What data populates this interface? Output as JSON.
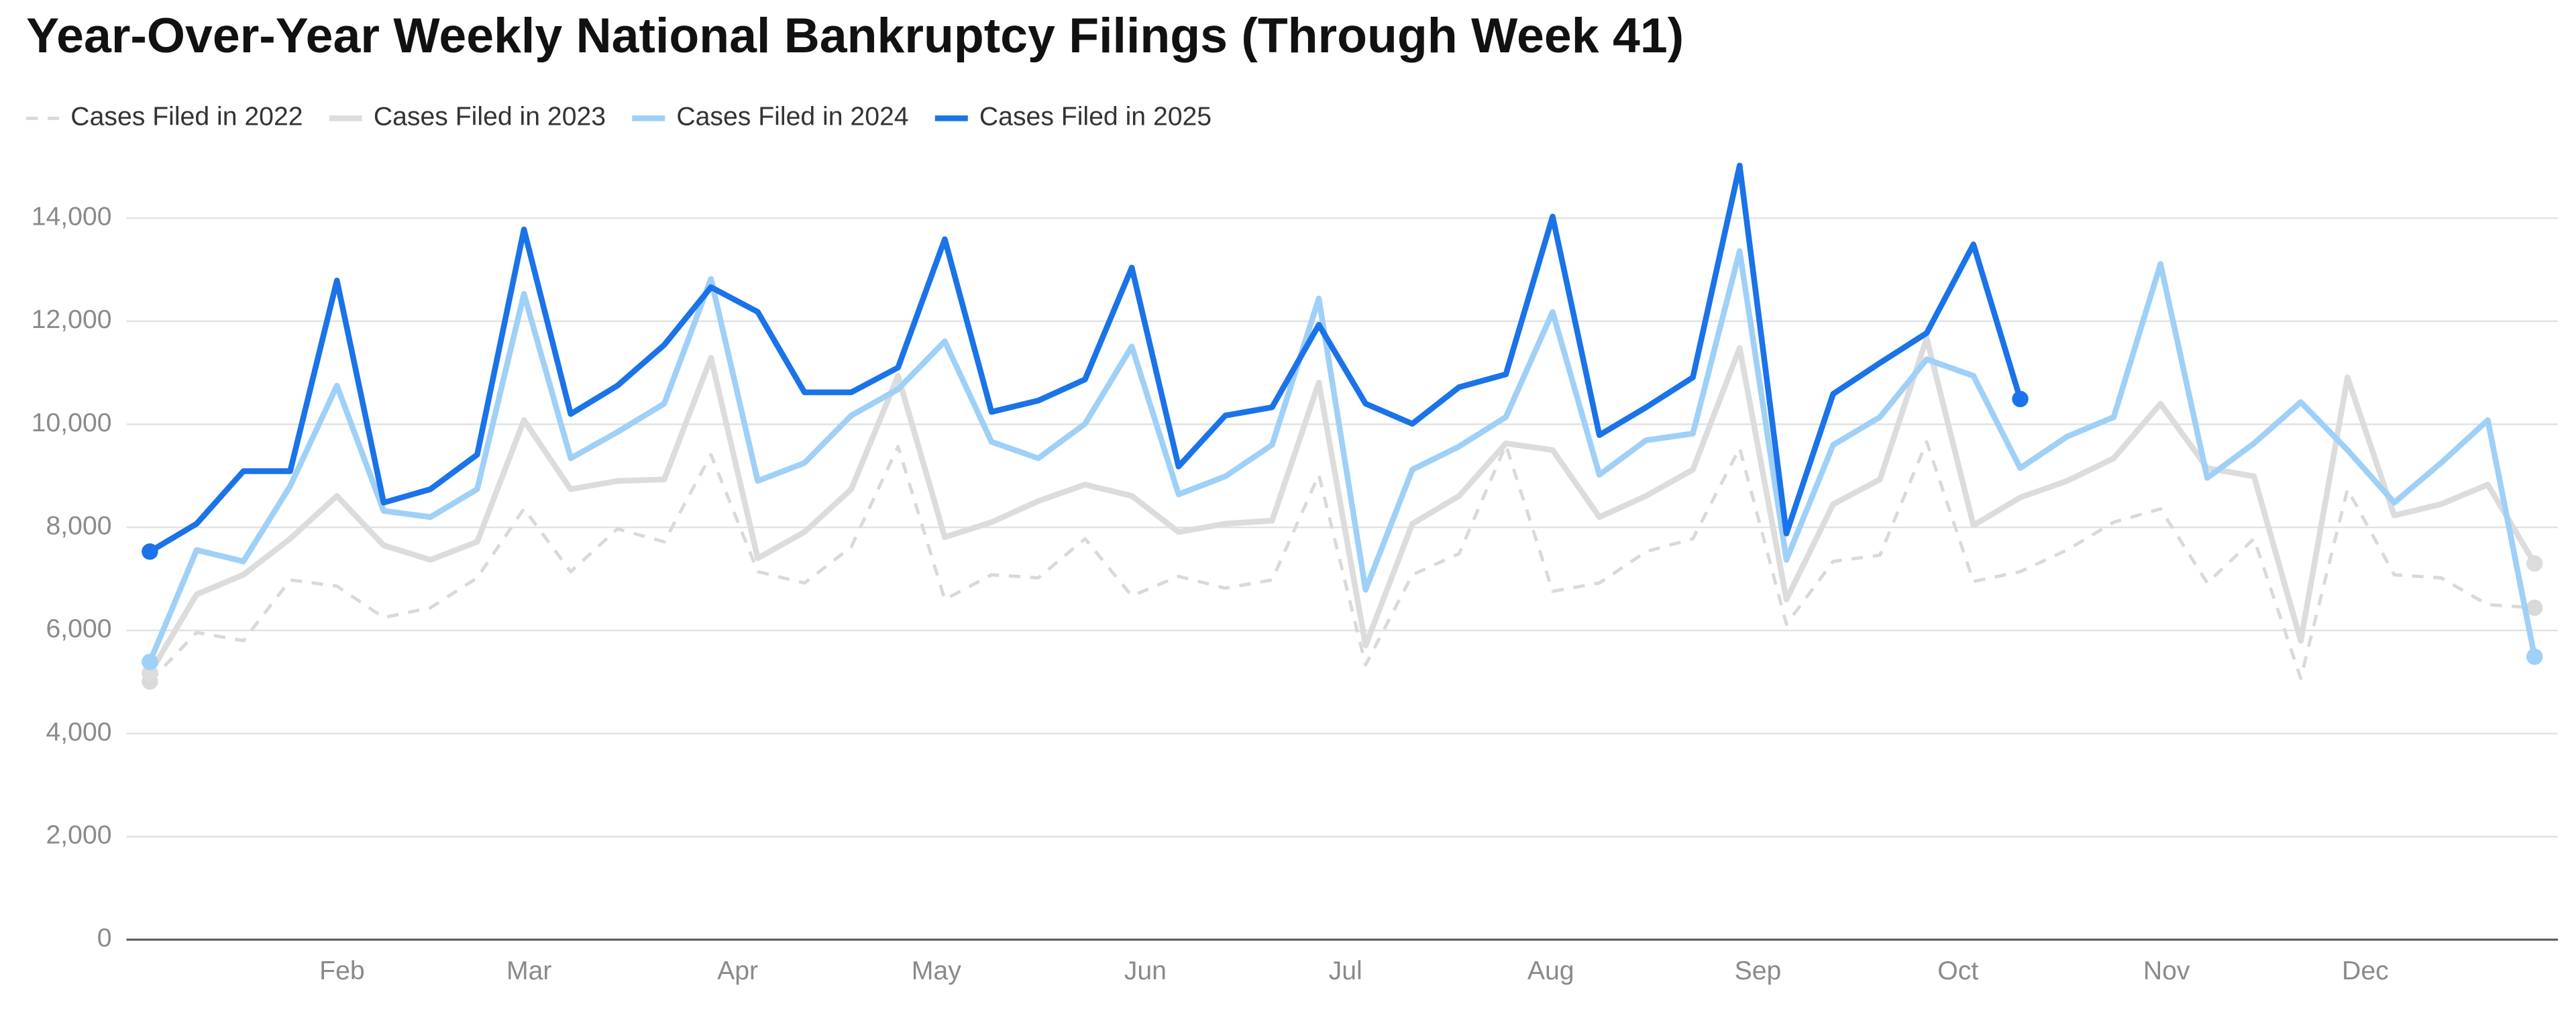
{
  "chart_data": {
    "type": "line",
    "title": "Year-Over-Year Weekly National Bankruptcy Filings (Through Week 41)",
    "x": [
      1,
      2,
      3,
      4,
      5,
      6,
      7,
      8,
      9,
      10,
      11,
      12,
      13,
      14,
      15,
      16,
      17,
      18,
      19,
      20,
      21,
      22,
      23,
      24,
      25,
      26,
      27,
      28,
      29,
      30,
      31,
      32,
      33,
      34,
      35,
      36,
      37,
      38,
      39,
      40,
      41,
      42,
      43,
      44,
      45,
      46,
      47,
      48,
      49,
      50,
      51,
      52
    ],
    "xlim": [
      0.5,
      52.5
    ],
    "xticks": [
      {
        "value": 5.11,
        "label": "Feb"
      },
      {
        "value": 9.11,
        "label": "Mar"
      },
      {
        "value": 13.57,
        "label": "Apr"
      },
      {
        "value": 17.82,
        "label": "May"
      },
      {
        "value": 22.29,
        "label": "Jun"
      },
      {
        "value": 26.57,
        "label": "Jul"
      },
      {
        "value": 30.96,
        "label": "Aug"
      },
      {
        "value": 35.39,
        "label": "Sep"
      },
      {
        "value": 39.67,
        "label": "Oct"
      },
      {
        "value": 44.13,
        "label": "Nov"
      },
      {
        "value": 48.38,
        "label": "Dec"
      }
    ],
    "ylim": [
      0,
      16000
    ],
    "yticks": [
      0,
      {
        "value": 2000,
        "label": "2,000"
      },
      {
        "value": 4000,
        "label": "4,000"
      },
      {
        "value": 6000,
        "label": "6,000"
      },
      {
        "value": 8000,
        "label": "8,000"
      },
      {
        "value": 10000,
        "label": "10,000"
      },
      {
        "value": 12000,
        "label": "12,000"
      },
      {
        "value": 14000,
        "label": "14,000"
      }
    ],
    "grid": true,
    "legend": "top-left",
    "series": [
      {
        "name": "Cases Filed in 2022",
        "color": "#d9d9d9",
        "style": "dashed",
        "values": [
          5010,
          5960,
          5800,
          6980,
          6860,
          6250,
          6440,
          7020,
          8360,
          7140,
          7970,
          7720,
          9410,
          7140,
          6920,
          7620,
          9570,
          6600,
          7080,
          7020,
          7780,
          6670,
          7050,
          6820,
          6980,
          9020,
          5330,
          7080,
          7490,
          9600,
          6760,
          6920,
          7530,
          7780,
          9540,
          6120,
          7340,
          7460,
          9660,
          6950,
          7140,
          7560,
          8100,
          8360,
          6920,
          7780,
          5070,
          8740,
          7080,
          7020,
          6500,
          6440
        ]
      },
      {
        "name": "Cases Filed in 2023",
        "color": "#dcdcdc",
        "style": "solid",
        "values": [
          5170,
          6700,
          7080,
          7780,
          8610,
          7650,
          7370,
          7720,
          10080,
          8740,
          8900,
          8930,
          11290,
          7400,
          7910,
          8740,
          10940,
          7810,
          8100,
          8510,
          8830,
          8610,
          7910,
          8070,
          8130,
          10810,
          5710,
          8070,
          8610,
          9630,
          9500,
          8200,
          8610,
          9120,
          11480,
          6600,
          8450,
          8930,
          11670,
          8040,
          8580,
          8900,
          9340,
          10400,
          9150,
          8990,
          5800,
          10910,
          8230,
          8450,
          8830,
          7300
        ]
      },
      {
        "name": "Cases Filed in 2024",
        "color": "#9fd0f7",
        "style": "solid",
        "values": [
          5390,
          7560,
          7340,
          8800,
          10750,
          8320,
          8200,
          8740,
          12530,
          9340,
          9850,
          10400,
          12820,
          8900,
          9250,
          10170,
          10680,
          11610,
          9660,
          9340,
          10010,
          11510,
          8640,
          8990,
          9600,
          12440,
          6790,
          9120,
          9570,
          10140,
          12180,
          9020,
          9690,
          9820,
          13360,
          7370,
          9600,
          10140,
          11260,
          10940,
          9150,
          9760,
          10140,
          13110,
          8960,
          9630,
          10430,
          9500,
          8480,
          9250,
          10080,
          5490
        ]
      },
      {
        "name": "Cases Filed in 2025",
        "color": "#1a73e8",
        "style": "solid",
        "values": [
          7530,
          8070,
          9090,
          9090,
          12790,
          8480,
          8740,
          9410,
          13780,
          10200,
          10750,
          11540,
          12660,
          12180,
          10620,
          10620,
          11100,
          13590,
          10240,
          10460,
          10870,
          13040,
          9180,
          10170,
          10330,
          11930,
          10400,
          10010,
          10720,
          10970,
          14030,
          9790,
          10330,
          10910,
          15020,
          7880,
          10590,
          11190,
          11770,
          13490,
          10490,
          null,
          null,
          null,
          null,
          null,
          null,
          null,
          null,
          null,
          null,
          null
        ]
      }
    ]
  }
}
